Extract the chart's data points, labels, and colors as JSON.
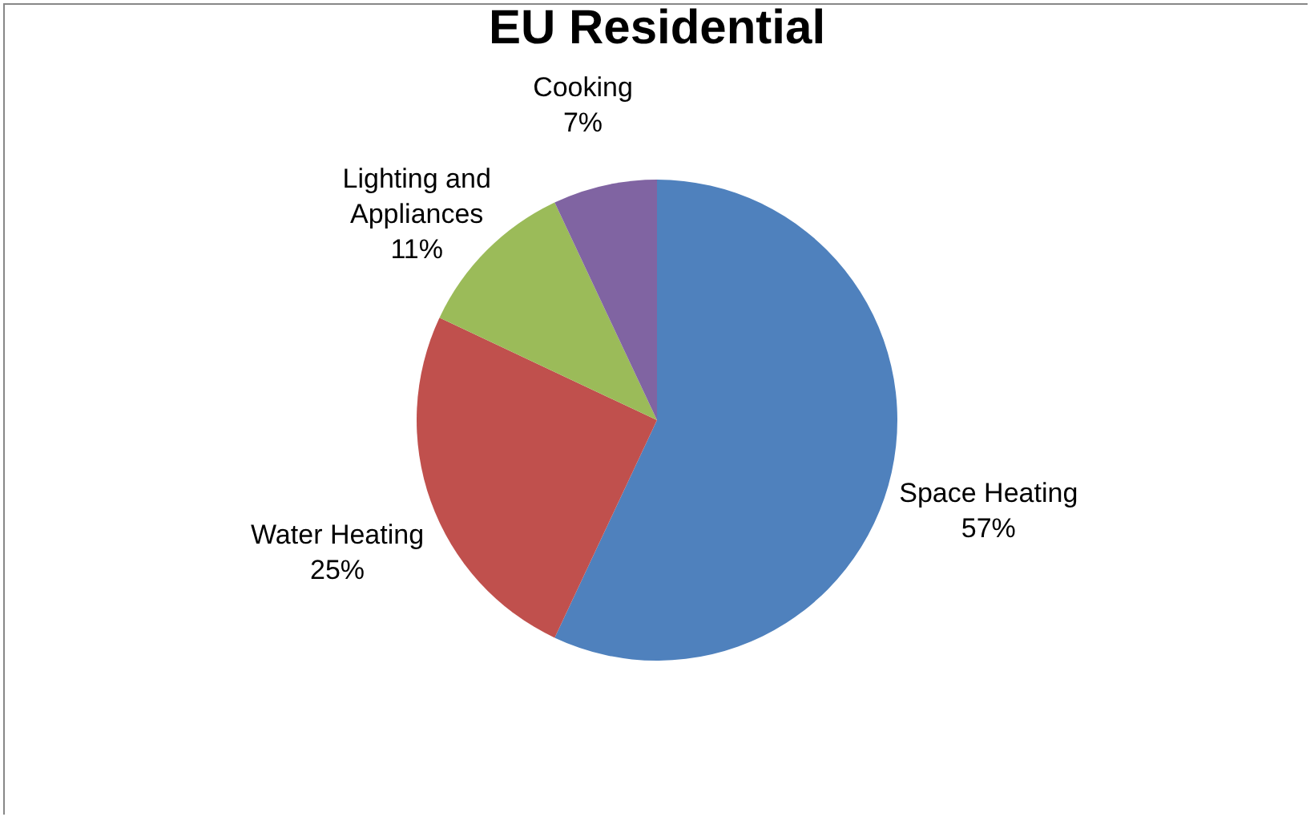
{
  "chart_data": {
    "type": "pie",
    "title": "EU Residential",
    "categories": [
      "Space Heating",
      "Water Heating",
      "Lighting and Appliances",
      "Cooking"
    ],
    "values": [
      57,
      25,
      11,
      7
    ],
    "value_labels": [
      "57%",
      "25%",
      "11%",
      "7%"
    ],
    "colors": [
      "#4f81bd",
      "#c0504d",
      "#9bbb59",
      "#8064a2"
    ],
    "legend": false
  }
}
